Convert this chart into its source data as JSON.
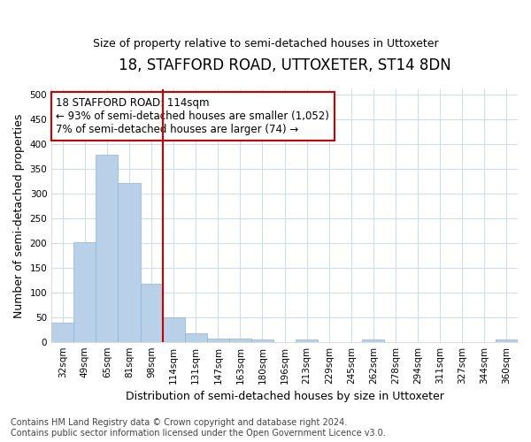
{
  "title": "18, STAFFORD ROAD, UTTOXETER, ST14 8DN",
  "subtitle": "Size of property relative to semi-detached houses in Uttoxeter",
  "xlabel": "Distribution of semi-detached houses by size in Uttoxeter",
  "ylabel": "Number of semi-detached properties",
  "categories": [
    "32sqm",
    "49sqm",
    "65sqm",
    "81sqm",
    "98sqm",
    "114sqm",
    "131sqm",
    "147sqm",
    "163sqm",
    "180sqm",
    "196sqm",
    "213sqm",
    "229sqm",
    "245sqm",
    "262sqm",
    "278sqm",
    "294sqm",
    "311sqm",
    "327sqm",
    "344sqm",
    "360sqm"
  ],
  "values": [
    38,
    202,
    378,
    321,
    118,
    50,
    17,
    7,
    7,
    4,
    0,
    5,
    0,
    0,
    4,
    0,
    0,
    0,
    0,
    0,
    4
  ],
  "bar_color": "#b8d0e8",
  "bar_edge_color": "#8ab4d4",
  "vline_x_index": 5,
  "vline_color": "#cc0000",
  "annotation_text": "18 STAFFORD ROAD: 114sqm\n← 93% of semi-detached houses are smaller (1,052)\n7% of semi-detached houses are larger (74) →",
  "annotation_box_color": "#ffffff",
  "annotation_box_edge_color": "#cc0000",
  "ylim": [
    0,
    510
  ],
  "yticks": [
    0,
    50,
    100,
    150,
    200,
    250,
    300,
    350,
    400,
    450,
    500
  ],
  "footer_line1": "Contains HM Land Registry data © Crown copyright and database right 2024.",
  "footer_line2": "Contains public sector information licensed under the Open Government Licence v3.0.",
  "bg_color": "#ffffff",
  "plot_bg_color": "#ffffff",
  "grid_color": "#d0dce8",
  "title_fontsize": 12,
  "subtitle_fontsize": 9,
  "axis_label_fontsize": 9,
  "tick_fontsize": 7.5,
  "annotation_fontsize": 8.5,
  "footer_fontsize": 7
}
